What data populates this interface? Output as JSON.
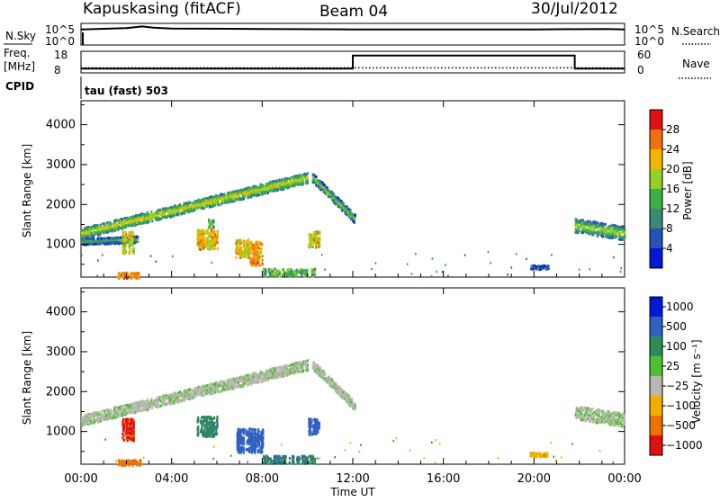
{
  "header": {
    "station": "Kapuskasing (fitACF)",
    "beam": "Beam 04",
    "date": "30/Jul/2012"
  },
  "noise_panel": {
    "left_label": "N.Sky",
    "right_label": "N.Search",
    "left_ticks": [
      "10^5",
      "10^0"
    ],
    "right_ticks": [
      "10^5",
      "10^0"
    ]
  },
  "freq_panel": {
    "left_label_line1": "Freq.",
    "left_label_line2": "[MHz]",
    "left_ticks": [
      "18",
      "8"
    ],
    "right_label": "Nave",
    "right_ticks": [
      "60",
      "0"
    ]
  },
  "cpid_label": "CPID",
  "cpid_text": "tau (fast) 503",
  "x_axis": {
    "title": "Time UT",
    "ticks": [
      "00:00",
      "04:00",
      "08:00",
      "12:00",
      "16:00",
      "20:00",
      "00:00"
    ]
  },
  "power_panel": {
    "ylabel": "Slant Range [km]",
    "yticks": [
      "4000",
      "3000",
      "2000",
      "1000"
    ],
    "colorbar_label": "Power [dB]",
    "colorbar_ticks": [
      "28",
      "24",
      "20",
      "16",
      "12",
      "8",
      "4"
    ]
  },
  "velocity_panel": {
    "ylabel": "Slant Range [km]",
    "yticks": [
      "4000",
      "3000",
      "2000",
      "1000"
    ],
    "colorbar_label": "Velocity [m s⁻¹]",
    "colorbar_ticks": [
      "1000",
      "500",
      "100",
      "25",
      "−25",
      "−100",
      "−500",
      "−1000"
    ]
  },
  "colors": {
    "power_scale": [
      "#0018d8",
      "#2850b8",
      "#3a8a78",
      "#3cb048",
      "#96d020",
      "#f0b800",
      "#f07010",
      "#e01010"
    ],
    "velocity_scale": [
      "#0018d8",
      "#3060c0",
      "#2e8a5a",
      "#50c030",
      "#b8b8b0",
      "#f0b000",
      "#f07000",
      "#e01010"
    ]
  },
  "chart_data": [
    {
      "type": "line",
      "title": "N.Sky",
      "x_unit": "hours UT",
      "x": [
        0,
        2,
        2.7,
        3.2,
        4,
        8,
        12,
        16,
        20,
        23.2,
        24
      ],
      "log10_value": [
        3.6,
        3.9,
        4.3,
        4.0,
        3.8,
        3.7,
        3.6,
        3.6,
        3.6,
        3.7,
        3.6
      ]
    },
    {
      "type": "line",
      "title": "Freq. / Nave",
      "x_unit": "hours UT",
      "series": [
        {
          "name": "Freq.",
          "x": [
            0,
            12,
            12,
            21.8,
            21.8,
            24
          ],
          "values": [
            10,
            10,
            16,
            16,
            10,
            10
          ]
        },
        {
          "name": "Nave",
          "x": [
            0,
            24
          ],
          "values": [
            14,
            14
          ]
        }
      ]
    },
    {
      "type": "heatmap",
      "title": "Power [dB]",
      "x_unit": "hours UT",
      "y_unit": "slant range km",
      "xlim": [
        0,
        24
      ],
      "ylim": [
        180,
        4600
      ],
      "bands": [
        {
          "x0": 0.0,
          "x1": 10.0,
          "y_start": 1300,
          "y_end": 2700,
          "width": 260,
          "value": 14
        },
        {
          "x0": 0.0,
          "x1": 2.5,
          "y_start": 1100,
          "y_end": 1150,
          "width": 160,
          "value": 8
        },
        {
          "x0": 10.2,
          "x1": 12.1,
          "y_start": 2700,
          "y_end": 1650,
          "width": 220,
          "value": 10
        },
        {
          "x0": 21.8,
          "x1": 24.0,
          "y_start": 1500,
          "y_end": 1300,
          "width": 340,
          "value": 12
        }
      ],
      "blobs": [
        {
          "x0": 1.8,
          "x1": 2.3,
          "y0": 800,
          "y1": 1350,
          "value": 20
        },
        {
          "x0": 5.1,
          "x1": 6.0,
          "y0": 900,
          "y1": 1400,
          "value": 22
        },
        {
          "x0": 5.6,
          "x1": 5.9,
          "y0": 1450,
          "y1": 1650,
          "value": 14
        },
        {
          "x0": 6.8,
          "x1": 7.4,
          "y0": 700,
          "y1": 1150,
          "value": 20
        },
        {
          "x0": 7.4,
          "x1": 8.0,
          "y0": 500,
          "y1": 1100,
          "value": 24
        },
        {
          "x0": 8.0,
          "x1": 10.3,
          "y0": 230,
          "y1": 420,
          "value": 14
        },
        {
          "x0": 10.0,
          "x1": 10.5,
          "y0": 950,
          "y1": 1350,
          "value": 20
        },
        {
          "x0": 19.8,
          "x1": 20.6,
          "y0": 400,
          "y1": 500,
          "value": 6
        },
        {
          "x0": 1.6,
          "x1": 2.6,
          "y0": 180,
          "y1": 320,
          "value": 24
        }
      ]
    },
    {
      "type": "heatmap",
      "title": "Velocity [m s⁻¹]",
      "x_unit": "hours UT",
      "y_unit": "slant range km",
      "xlim": [
        0,
        24
      ],
      "ylim": [
        180,
        4600
      ],
      "bands": [
        {
          "x0": 0.0,
          "x1": 10.0,
          "y_start": 1300,
          "y_end": 2700,
          "width": 260,
          "value": 0
        },
        {
          "x0": 10.2,
          "x1": 12.1,
          "y_start": 2700,
          "y_end": 1650,
          "width": 220,
          "value": 0
        },
        {
          "x0": 21.8,
          "x1": 24.0,
          "y_start": 1500,
          "y_end": 1300,
          "width": 340,
          "value": 0
        }
      ],
      "blobs": [
        {
          "x0": 1.8,
          "x1": 2.3,
          "y0": 800,
          "y1": 1350,
          "value": -600
        },
        {
          "x0": 5.1,
          "x1": 6.0,
          "y0": 900,
          "y1": 1400,
          "value": 80
        },
        {
          "x0": 6.8,
          "x1": 8.0,
          "y0": 500,
          "y1": 1100,
          "value": 150
        },
        {
          "x0": 8.0,
          "x1": 10.3,
          "y0": 230,
          "y1": 420,
          "value": 90
        },
        {
          "x0": 10.0,
          "x1": 10.5,
          "y0": 950,
          "y1": 1350,
          "value": 150
        },
        {
          "x0": 19.8,
          "x1": 20.6,
          "y0": 400,
          "y1": 500,
          "value": -60
        },
        {
          "x0": 1.6,
          "x1": 2.6,
          "y0": 180,
          "y1": 320,
          "value": -150
        }
      ]
    }
  ]
}
